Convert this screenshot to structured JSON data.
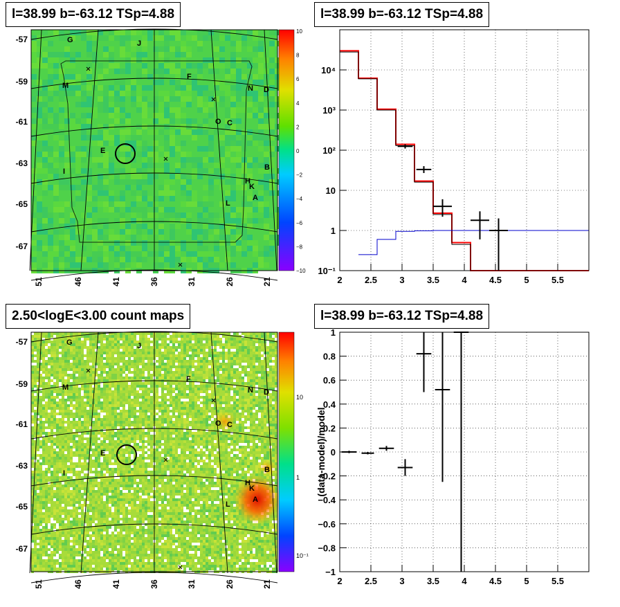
{
  "panels": {
    "tl_title": "l=38.99 b=-63.12 TSp=4.88",
    "tr_title": "l=38.99 b=-63.12 TSp=4.88",
    "bl_title": "2.50<logE<3.00 count maps",
    "br_title": "l=38.99 b=-63.12 TSp=4.88"
  },
  "sky_maps": {
    "lat_ticks": [
      "-57",
      "-59",
      "-61",
      "-63",
      "-65",
      "-67"
    ],
    "lon_ticks": [
      "51",
      "46",
      "41",
      "36",
      "31",
      "26",
      "21"
    ],
    "residual_scale": [
      "10",
      "8",
      "6",
      "4",
      "2",
      "0",
      "−2",
      "−4",
      "−6",
      "−8",
      "−10"
    ],
    "count_scale": [
      "10",
      "1",
      "10⁻¹"
    ],
    "sources": [
      "G",
      "J",
      "M",
      "F",
      "N",
      "D",
      "O",
      "C",
      "E",
      "I",
      "B",
      "H",
      "K",
      "L",
      "A"
    ]
  },
  "chart_data": [
    {
      "type": "line",
      "panel": "spectrum",
      "xlim": [
        2,
        6
      ],
      "ylim": [
        0.1,
        100000
      ],
      "y_scale": "log",
      "grid": true,
      "x_ticks": [
        "2",
        "2.5",
        "3",
        "3.5",
        "4",
        "4.5",
        "5",
        "5.5"
      ],
      "y_ticks": [
        "10⁻¹",
        "1",
        "10",
        "10²",
        "10³",
        "10⁴"
      ],
      "series": [
        {
          "color": "#ff0000",
          "style": "step",
          "edges": [
            2.0,
            2.3,
            2.6,
            2.9,
            3.2,
            3.5,
            3.8,
            4.1,
            4.4,
            6.0
          ],
          "values": [
            30000,
            6200,
            1050,
            140,
            17,
            2.7,
            0.5,
            0.1,
            0.1
          ]
        },
        {
          "color": "#000000",
          "style": "step",
          "edges": [
            2.0,
            2.3,
            2.6,
            2.9,
            3.2,
            3.5,
            3.8,
            4.1,
            4.4,
            6.0
          ],
          "values": [
            28000,
            6000,
            1000,
            130,
            16,
            2.5,
            0.45,
            0.1,
            0.1
          ]
        },
        {
          "color": "#0000cc",
          "style": "step",
          "edges": [
            2.3,
            2.6,
            2.9,
            3.2,
            3.5,
            3.8,
            4.1,
            4.4,
            6.0
          ],
          "values": [
            0.25,
            0.6,
            0.95,
            0.98,
            1.0,
            1.0,
            1.0,
            1.0
          ]
        },
        {
          "color": "#000000",
          "style": "points",
          "x": [
            3.05,
            3.35,
            3.65,
            4.25,
            4.55
          ],
          "xerr": [
            0.12,
            0.12,
            0.15,
            0.15,
            0.15
          ],
          "y": [
            125,
            33,
            4.0,
            1.8,
            1.0
          ],
          "ylo": [
            110,
            27,
            2.2,
            0.6,
            0.1
          ],
          "yhi": [
            140,
            40,
            6.0,
            3.0,
            2.0
          ]
        }
      ]
    },
    {
      "type": "scatter",
      "panel": "residual",
      "ylabel": "(data-model)/model",
      "xlim": [
        2,
        6
      ],
      "ylim": [
        -1,
        1
      ],
      "grid": true,
      "x_ticks": [
        "2",
        "2.5",
        "3",
        "3.5",
        "4",
        "4.5",
        "5",
        "5.5"
      ],
      "y_ticks": [
        "−1",
        "−0.8",
        "−0.6",
        "−0.4",
        "−0.2",
        "0",
        "0.2",
        "0.4",
        "0.6",
        "0.8",
        "1"
      ],
      "y_tick_values": [
        -1,
        -0.8,
        -0.6,
        -0.4,
        -0.2,
        0,
        0.2,
        0.4,
        0.6,
        0.8,
        1
      ],
      "x": [
        2.15,
        2.45,
        2.75,
        3.05,
        3.35,
        3.65,
        3.95
      ],
      "xerr": [
        0.12,
        0.1,
        0.12,
        0.12,
        0.12,
        0.12,
        0.12
      ],
      "y": [
        0.0,
        -0.01,
        0.03,
        -0.13,
        0.82,
        0.52,
        1.0
      ],
      "ylo": [
        -0.01,
        -0.02,
        0.01,
        -0.2,
        0.5,
        -0.25,
        -1.0
      ],
      "yhi": [
        0.01,
        0.0,
        0.05,
        -0.06,
        1.0,
        1.0,
        1.0
      ]
    }
  ]
}
